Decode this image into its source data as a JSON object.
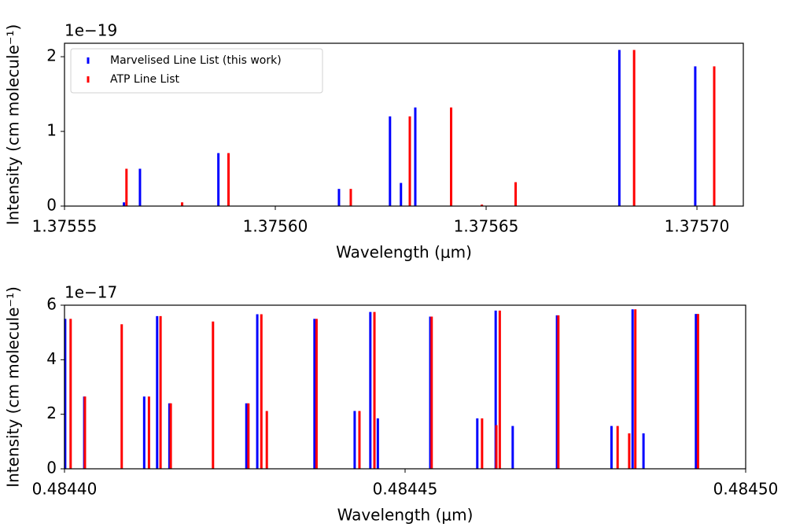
{
  "chart_data": [
    {
      "type": "stem",
      "xlabel": "Wavelength (μm)",
      "ylabel": "Intensity (cm molecule⁻¹)",
      "y_offset_label": "1e−19",
      "xlim": [
        1.37555,
        1.375711
      ],
      "ylim": [
        0,
        2.18
      ],
      "xticks": [
        1.37555,
        {
          "value": 1.3756,
          "label": "1.37560"
        },
        1.37565,
        {
          "value": 1.3757,
          "label": "1.37570"
        }
      ],
      "yticks": [
        0,
        1,
        2
      ],
      "legend": "upper left",
      "series": [
        {
          "name": "Marvelised Line List (this work)",
          "color": "#0000ff",
          "x": [
            1.3755641,
            1.3755679,
            1.3755865,
            1.3756151,
            1.3756272,
            1.3756298,
            1.3756332,
            1.3756816,
            1.3756996
          ],
          "values": [
            0.05,
            0.5,
            0.71,
            0.23,
            1.2,
            0.31,
            1.32,
            2.09,
            1.87
          ]
        },
        {
          "name": "ATP Line List",
          "color": "#ff0000",
          "x": [
            1.3755647,
            1.3755779,
            1.3755889,
            1.3756179,
            1.3756319,
            1.3756417,
            1.375649,
            1.375657,
            1.3756851,
            1.3757041
          ],
          "values": [
            0.5,
            0.05,
            0.71,
            0.23,
            1.2,
            1.32,
            0.02,
            0.32,
            2.09,
            1.87
          ]
        }
      ]
    },
    {
      "type": "stem",
      "xlabel": "Wavelength (μm)",
      "ylabel": "Intensity (cm molecule⁻¹)",
      "y_offset_label": "1e−17",
      "xlim": [
        0.4844,
        0.4845
      ],
      "ylim": [
        0,
        6
      ],
      "xticks": [
        {
          "value": 0.4844,
          "label": "0.48440"
        },
        0.48445,
        {
          "value": 0.4845,
          "label": "0.48450"
        }
      ],
      "yticks": [
        0,
        2,
        4,
        6
      ],
      "series": [
        {
          "color": "#0000ff",
          "x": [
            0.4844001,
            0.4844029,
            0.4844117,
            0.4844136,
            0.4844154,
            0.4844267,
            0.4844283,
            0.4844367,
            0.4844426,
            0.4844449,
            0.484446,
            0.4844537,
            0.4844606,
            0.4844633,
            0.4844658,
            0.4844723,
            0.4844803,
            0.4844834,
            0.484485,
            0.4844927
          ],
          "values": [
            5.5,
            2.65,
            2.65,
            5.6,
            2.4,
            2.4,
            5.67,
            5.5,
            2.12,
            5.75,
            1.85,
            5.58,
            1.85,
            5.8,
            1.57,
            5.63,
            1.57,
            5.85,
            1.3,
            5.68
          ]
        },
        {
          "color": "#ff0000",
          "x": [
            0.4844009,
            0.484403,
            0.4844084,
            0.4844124,
            0.4844141,
            0.4844156,
            0.4844218,
            0.484427,
            0.4844289,
            0.4844297,
            0.484437,
            0.4844433,
            0.4844455,
            0.4844539,
            0.4844613,
            0.4844634,
            0.4844639,
            0.4844725,
            0.4844812,
            0.4844829,
            0.4844838,
            0.484493
          ],
          "values": [
            5.5,
            2.65,
            5.3,
            2.65,
            5.6,
            2.4,
            5.4,
            2.4,
            5.67,
            2.12,
            5.5,
            2.12,
            5.75,
            5.58,
            1.85,
            1.6,
            5.8,
            5.63,
            1.57,
            1.3,
            5.85,
            5.68
          ]
        }
      ]
    }
  ]
}
